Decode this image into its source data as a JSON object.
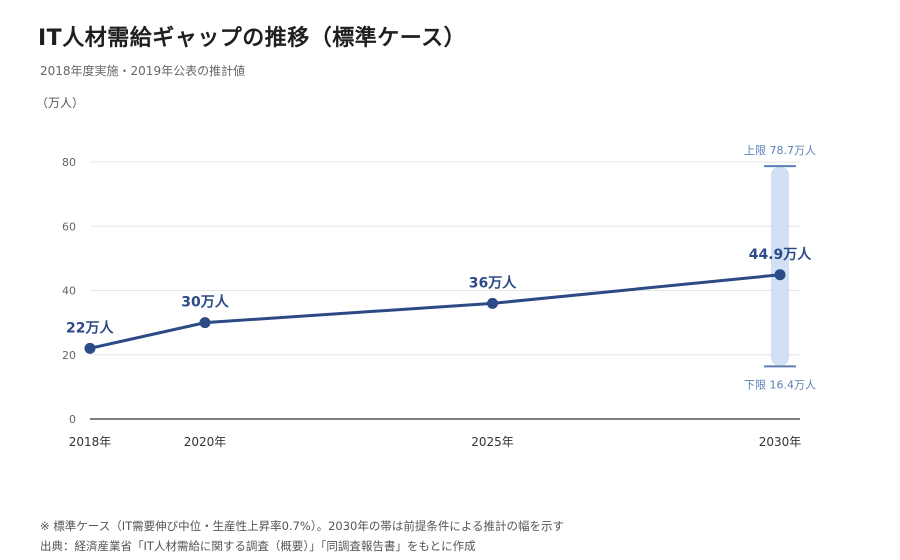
{
  "header": {
    "title": "IT人材需給ギャップの推移（標準ケース）",
    "subtitle": "2018年度実施・2019年公表の推計値"
  },
  "chart_data": {
    "type": "line",
    "title": "IT人材需給ギャップの推移（標準ケース）",
    "subtitle": "2018年度実施・2019年公表の推計値",
    "ylabel": "（万人）",
    "xlabel": "",
    "ylim": [
      0,
      80
    ],
    "yticks": [
      "0",
      "20",
      "40",
      "60",
      "80"
    ],
    "grid": true,
    "x": [
      2018,
      2020,
      2025,
      2030
    ],
    "categories": [
      "2018年",
      "2020年",
      "2025年",
      "2030年"
    ],
    "series": [
      {
        "values": [
          22,
          30,
          36,
          44.9
        ],
        "labels": [
          "22万人",
          "30万人",
          "36万人",
          "44.9万人"
        ],
        "color": "#2b4a86"
      }
    ],
    "range_band": {
      "x": 2030,
      "low": 16.4,
      "high": 78.7,
      "low_label": "下限 16.4万人",
      "high_label": "上限 78.7万人",
      "color": "#c9daf3",
      "cap_color": "#5b7fb5"
    }
  },
  "notes": {
    "line1": "※ 標準ケース（IT需要伸び中位・生産性上昇率0.7%）。2030年の帯は前提条件による推計の幅を示す",
    "line2": "出典：経済産業省「IT人材需給に関する調査（概要）」「同調査報告書」をもとに作成"
  }
}
